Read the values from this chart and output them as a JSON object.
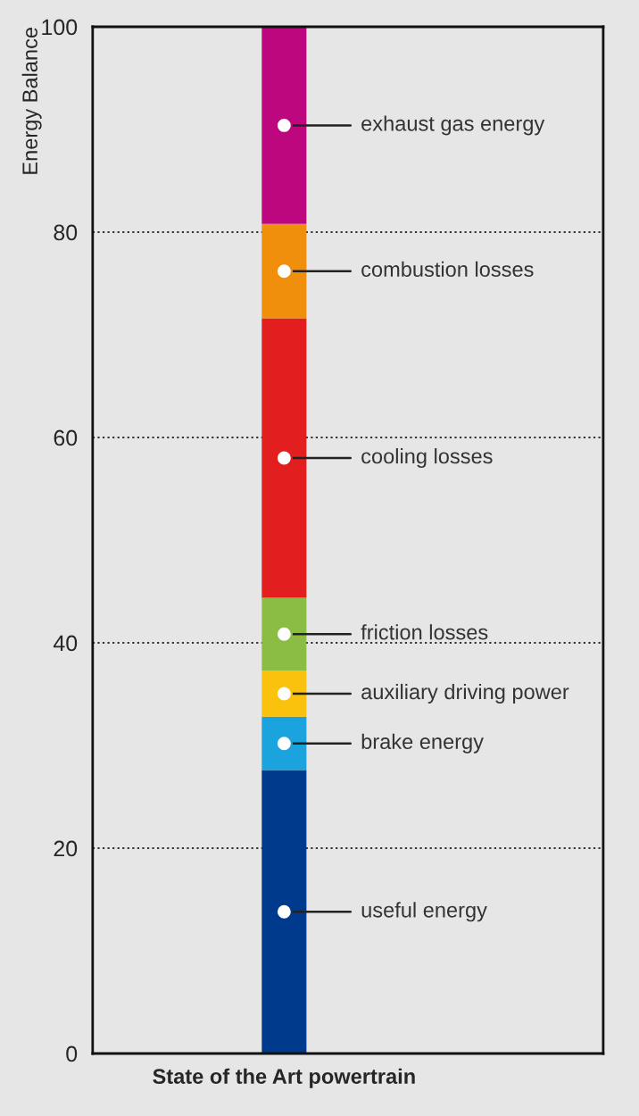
{
  "chart_data": {
    "type": "bar",
    "stacked": true,
    "ylabel": "Energy Balance",
    "categories": [
      "State of the Art powertrain"
    ],
    "ylim": [
      0,
      100
    ],
    "yticks": [
      0,
      20,
      40,
      60,
      80,
      100
    ],
    "grid": "y",
    "series": [
      {
        "name": "useful energy",
        "color": "#003a8c",
        "values": [
          27.6
        ]
      },
      {
        "name": "brake energy",
        "color": "#1ba3de",
        "values": [
          5.2
        ]
      },
      {
        "name": "auxiliary driving power",
        "color": "#fbc20d",
        "values": [
          4.5
        ]
      },
      {
        "name": "friction losses",
        "color": "#8bbd45",
        "values": [
          7.1
        ]
      },
      {
        "name": "cooling losses",
        "color": "#e21e1e",
        "values": [
          27.2
        ]
      },
      {
        "name": "combustion losses",
        "color": "#f08f0c",
        "values": [
          9.2
        ]
      },
      {
        "name": "exhaust gas energy",
        "color": "#bd077f",
        "values": [
          19.2
        ]
      }
    ]
  }
}
